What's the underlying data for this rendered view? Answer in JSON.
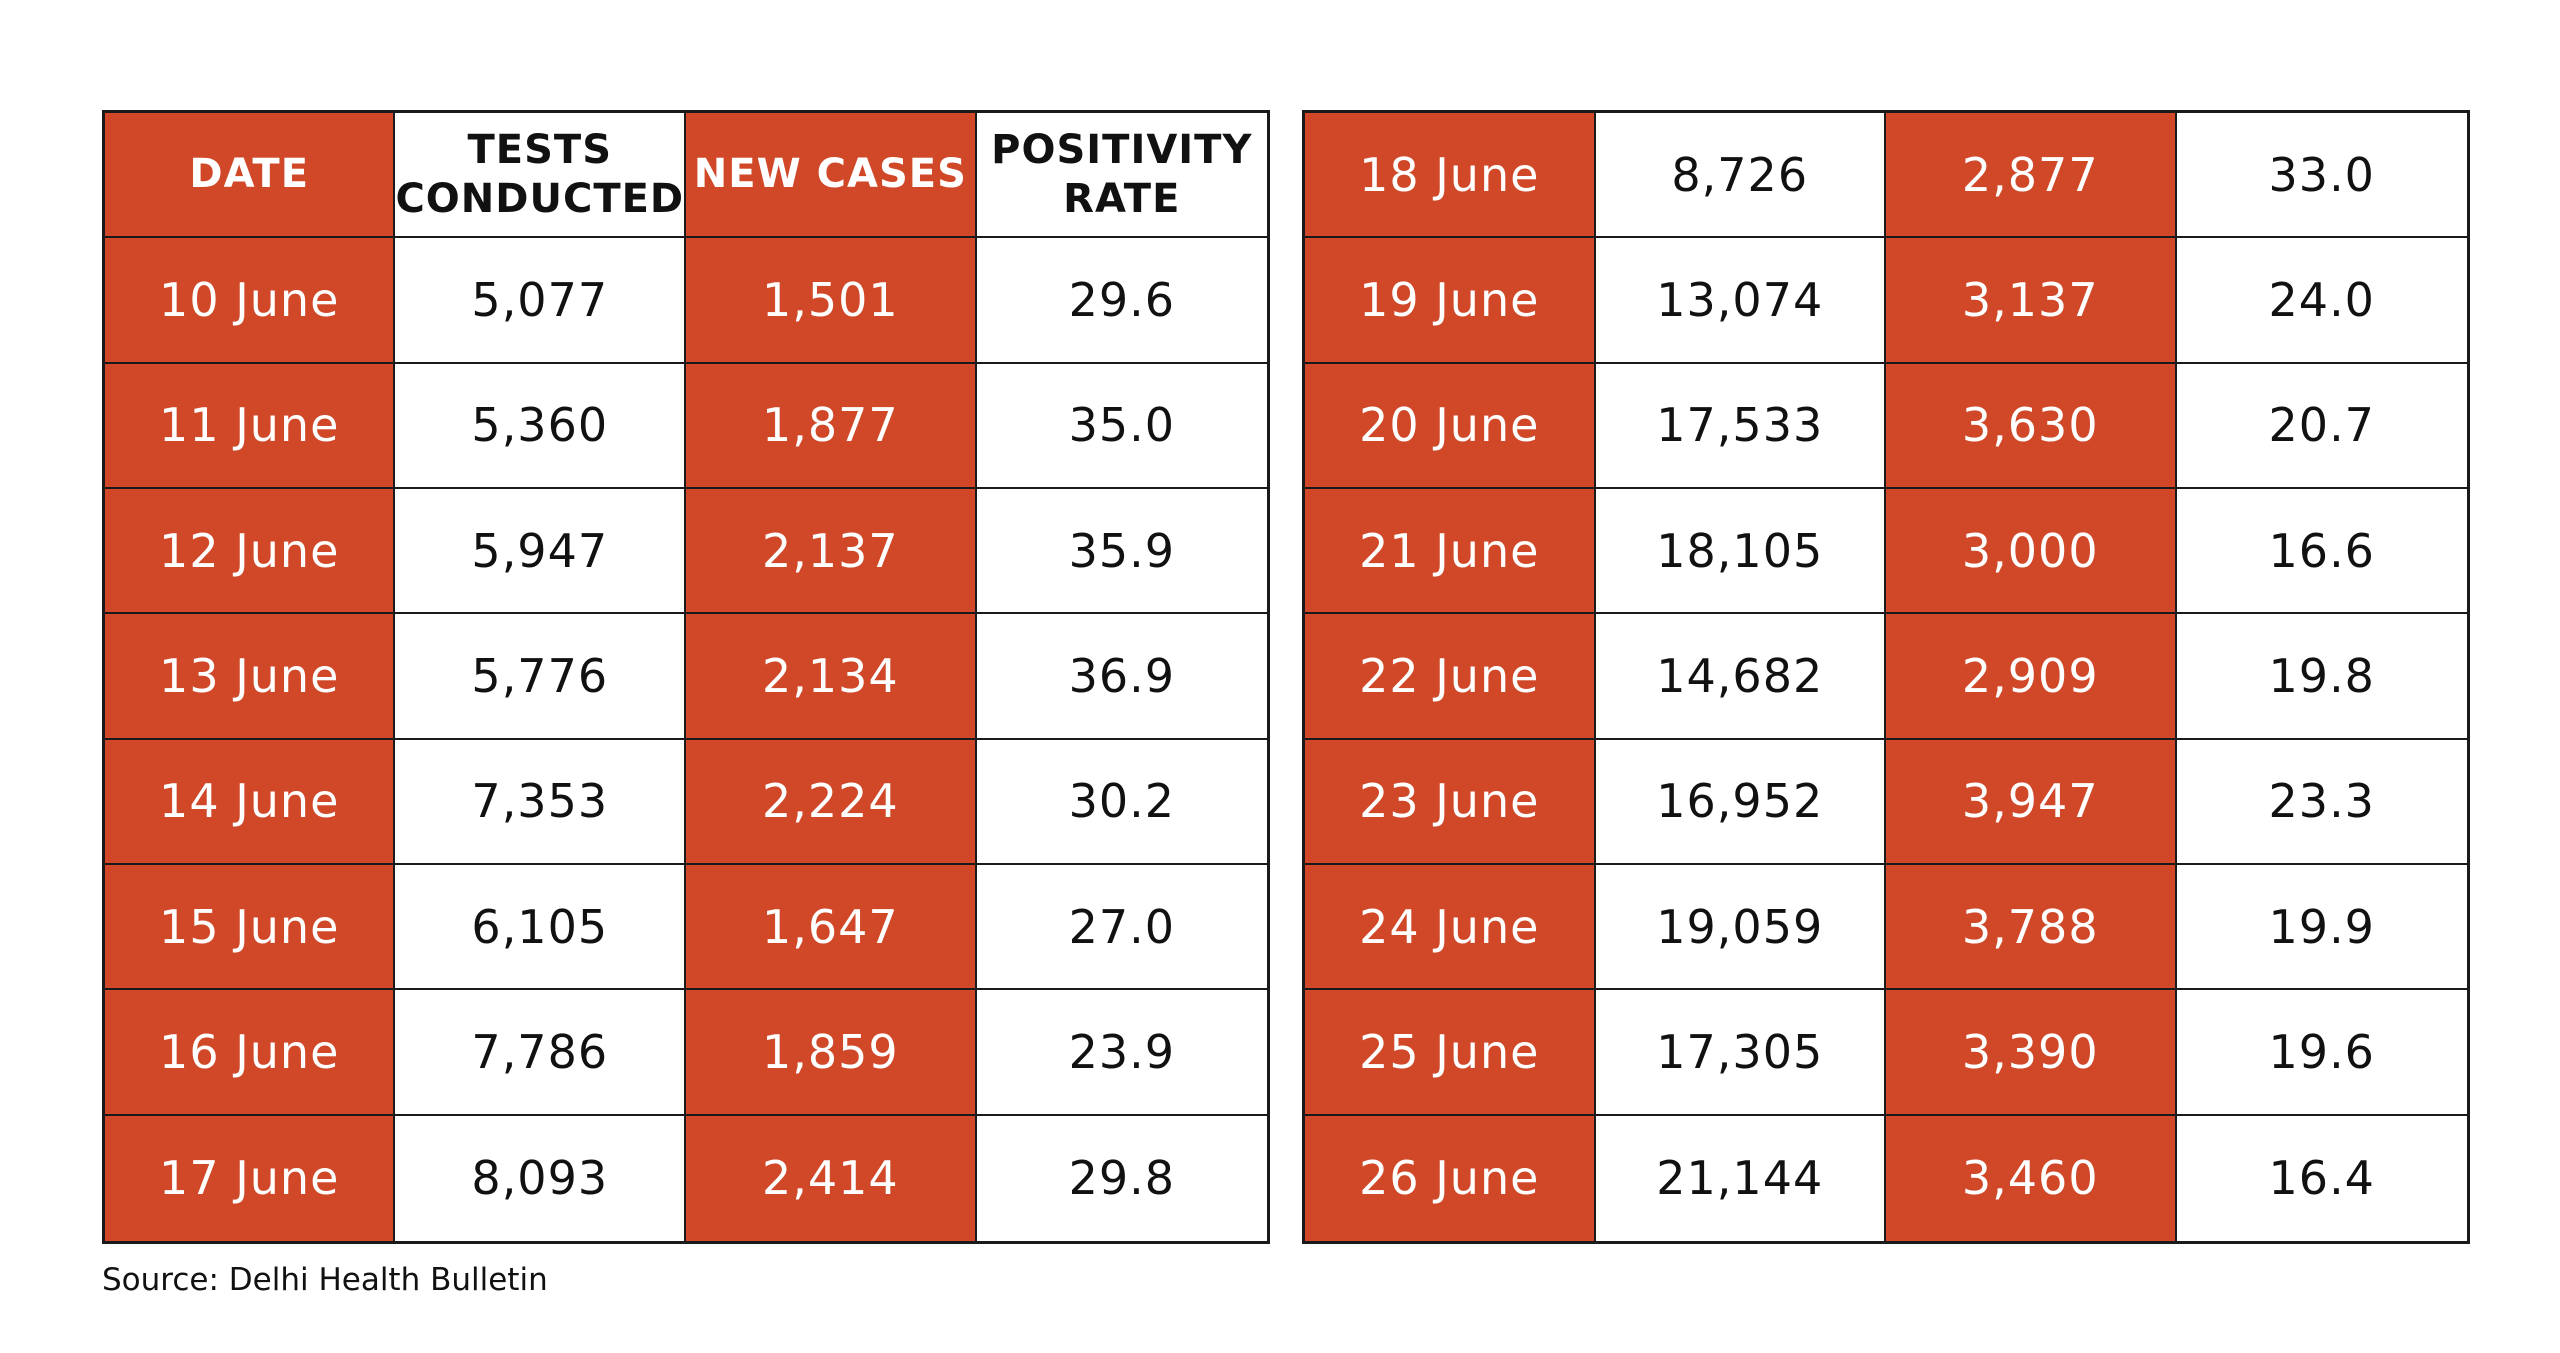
{
  "chart_data": {
    "type": "table",
    "columns": [
      "DATE",
      "TESTS CONDUCTED",
      "NEW CASES",
      "POSITIVITY RATE"
    ],
    "header_lines": [
      [
        "DATE"
      ],
      [
        "TESTS",
        "CONDUCTED"
      ],
      [
        "NEW CASES"
      ],
      [
        "POSITIVITY",
        "RATE"
      ]
    ],
    "rows_left": [
      [
        "10 June",
        "5,077",
        "1,501",
        "29.6"
      ],
      [
        "11 June",
        "5,360",
        "1,877",
        "35.0"
      ],
      [
        "12 June",
        "5,947",
        "2,137",
        "35.9"
      ],
      [
        "13 June",
        "5,776",
        "2,134",
        "36.9"
      ],
      [
        "14 June",
        "7,353",
        "2,224",
        "30.2"
      ],
      [
        "15 June",
        "6,105",
        "1,647",
        "27.0"
      ],
      [
        "16 June",
        "7,786",
        "1,859",
        "23.9"
      ],
      [
        "17 June",
        "8,093",
        "2,414",
        "29.8"
      ]
    ],
    "rows_right": [
      [
        "18 June",
        "8,726",
        "2,877",
        "33.0"
      ],
      [
        "19 June",
        "13,074",
        "3,137",
        "24.0"
      ],
      [
        "20 June",
        "17,533",
        "3,630",
        "20.7"
      ],
      [
        "21 June",
        "18,105",
        "3,000",
        "16.6"
      ],
      [
        "22 June",
        "14,682",
        "2,909",
        "19.8"
      ],
      [
        "23 June",
        "16,952",
        "3,947",
        "23.3"
      ],
      [
        "24 June",
        "19,059",
        "3,788",
        "19.9"
      ],
      [
        "25 June",
        "17,305",
        "3,390",
        "19.6"
      ],
      [
        "26 June",
        "21,144",
        "3,460",
        "16.4"
      ]
    ],
    "highlight_color": "#d04828",
    "highlight_columns": [
      0,
      2
    ]
  },
  "source": "Source: Delhi Health Bulletin"
}
